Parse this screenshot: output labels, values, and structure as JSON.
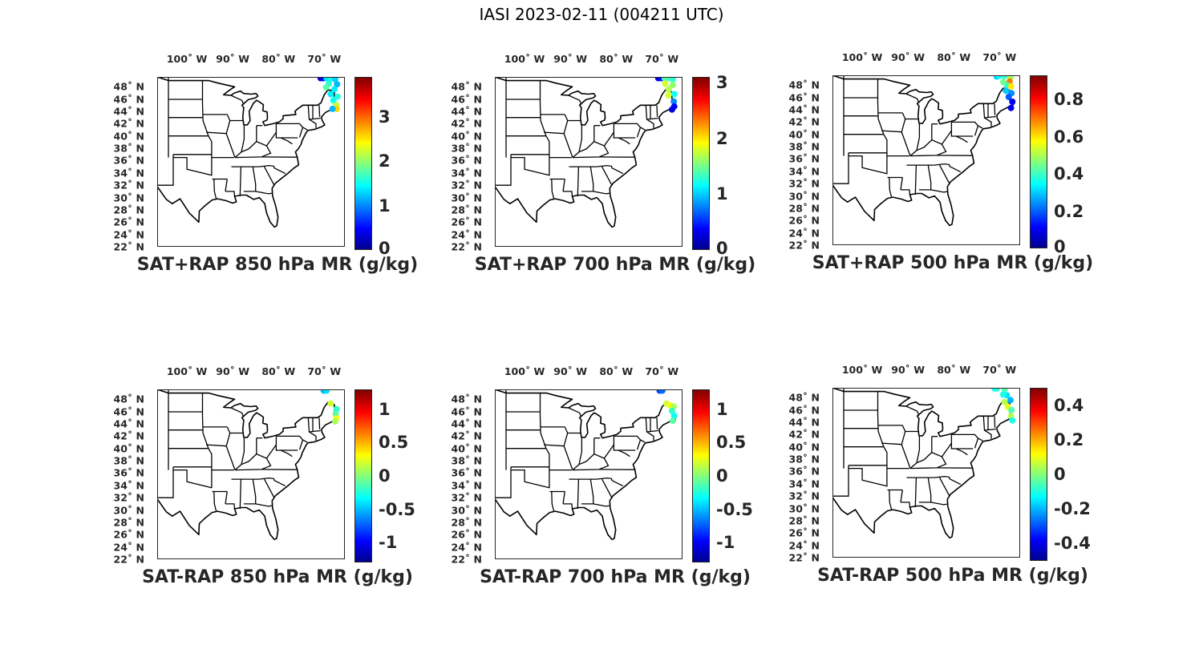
{
  "figure_title": "IASI 2023-02-11 (004211 UTC)",
  "longitude_ticks": [
    "100˚ W",
    "90˚ W",
    "80˚ W",
    "70˚ W"
  ],
  "latitude_ticks": [
    "48˚ N",
    "46˚ N",
    "44˚ N",
    "42˚ N",
    "40˚ N",
    "38˚ N",
    "36˚ N",
    "34˚ N",
    "32˚ N",
    "30˚ N",
    "28˚ N",
    "26˚ N",
    "24˚ N",
    "22˚ N"
  ],
  "colormap": "jet",
  "panels": [
    {
      "title": "SAT+RAP 850 hPa MR (g/kg)",
      "clim": [
        0,
        3.9
      ],
      "ticks": [
        "0",
        "1",
        "2",
        "3"
      ],
      "tick_values": [
        0,
        1,
        2,
        3
      ],
      "obs": [
        [
          -70.8,
          49.4,
          0.3
        ],
        [
          -70.1,
          49.4,
          0.5
        ],
        [
          -69.5,
          49.4,
          1.4
        ],
        [
          -68.5,
          49.4,
          1.5
        ],
        [
          -67.6,
          49.2,
          1.3
        ],
        [
          -67.2,
          48.4,
          1.2
        ],
        [
          -67.8,
          47.6,
          1.4
        ],
        [
          -68.6,
          46.8,
          1.4
        ],
        [
          -67.1,
          46.4,
          1.6
        ],
        [
          -68.0,
          45.8,
          1.5
        ],
        [
          -67.4,
          45.0,
          2.2
        ],
        [
          -67.3,
          44.4,
          2.6
        ],
        [
          -68.2,
          44.4,
          1.2
        ],
        [
          -69.0,
          48.5,
          1.6
        ],
        [
          -69.6,
          47.9,
          1.8
        ]
      ]
    },
    {
      "title": "SAT+RAP 700 hPa MR (g/kg)",
      "clim": [
        0,
        3.1
      ],
      "ticks": [
        "0",
        "1",
        "2",
        "3"
      ],
      "tick_values": [
        0,
        1,
        2,
        3
      ],
      "obs": [
        [
          -70.8,
          49.4,
          0.3
        ],
        [
          -70.1,
          49.4,
          0.4
        ],
        [
          -69.4,
          49.4,
          1.4
        ],
        [
          -68.5,
          49.4,
          1.4
        ],
        [
          -67.6,
          49.2,
          1.3
        ],
        [
          -67.6,
          48.3,
          1.6
        ],
        [
          -68.5,
          47.6,
          1.7
        ],
        [
          -69.3,
          48.5,
          1.8
        ],
        [
          -67.3,
          46.8,
          1.2
        ],
        [
          -67.4,
          45.6,
          0.8
        ],
        [
          -67.3,
          44.8,
          0.4
        ],
        [
          -67.8,
          44.3,
          0.3
        ],
        [
          -68.6,
          46.6,
          1.8
        ]
      ]
    },
    {
      "title": "SAT+RAP 500 hPa MR (g/kg)",
      "clim": [
        0,
        0.93
      ],
      "ticks": [
        "0",
        "0.2",
        "0.4",
        "0.6",
        "0.8"
      ],
      "tick_values": [
        0,
        0.2,
        0.4,
        0.6,
        0.8
      ],
      "obs": [
        [
          -70.6,
          49.4,
          0.3
        ],
        [
          -70.1,
          49.5,
          0.35
        ],
        [
          -68.9,
          49.5,
          0.4
        ],
        [
          -67.6,
          49.2,
          0.5
        ],
        [
          -67.8,
          48.6,
          0.7
        ],
        [
          -68.4,
          48.0,
          0.4
        ],
        [
          -67.5,
          47.8,
          0.6
        ],
        [
          -68.6,
          47.1,
          0.3
        ],
        [
          -67.4,
          46.7,
          0.25
        ],
        [
          -68.0,
          46.1,
          0.2
        ],
        [
          -67.2,
          45.3,
          0.1
        ],
        [
          -67.5,
          44.3,
          0.1
        ],
        [
          -69.2,
          48.5,
          0.45
        ]
      ]
    },
    {
      "title": "SAT-RAP 850 hPa MR (g/kg)",
      "clim": [
        -1.3,
        1.3
      ],
      "ticks": [
        "1",
        "0.5",
        "0",
        "-0.5",
        "-1"
      ],
      "tick_values": [
        1,
        0.5,
        0,
        -0.5,
        -1
      ],
      "obs": [
        [
          -70.1,
          49.4,
          -0.5
        ],
        [
          -69.5,
          49.4,
          -0.4
        ],
        [
          -68.6,
          47.3,
          0.2
        ],
        [
          -67.3,
          46.4,
          -0.2
        ],
        [
          -67.5,
          45.6,
          -0.1
        ],
        [
          -67.4,
          44.9,
          0.3
        ],
        [
          -67.6,
          44.4,
          0.1
        ]
      ]
    },
    {
      "title": "SAT-RAP 700 hPa MR (g/kg)",
      "clim": [
        -1.3,
        1.3
      ],
      "ticks": [
        "1",
        "0.5",
        "0",
        "-0.5",
        "-1"
      ],
      "tick_values": [
        1,
        0.5,
        0,
        -0.5,
        -1
      ],
      "obs": [
        [
          -70.5,
          49.4,
          -0.8
        ],
        [
          -69.9,
          49.4,
          -0.7
        ],
        [
          -69.0,
          47.3,
          0.2
        ],
        [
          -68.2,
          47.0,
          0.3
        ],
        [
          -67.4,
          46.8,
          0.1
        ],
        [
          -67.8,
          46.1,
          -0.2
        ],
        [
          -67.3,
          45.3,
          -0.3
        ],
        [
          -67.6,
          44.5,
          -0.1
        ]
      ]
    },
    {
      "title": "SAT-RAP 500 hPa MR (g/kg)",
      "clim": [
        -0.5,
        0.5
      ],
      "ticks": [
        "0.4",
        "0.2",
        "0",
        "-0.2",
        "-0.4"
      ],
      "tick_values": [
        0.4,
        0.2,
        0,
        -0.2,
        -0.4
      ],
      "obs": [
        [
          -71.1,
          49.5,
          -0.1
        ],
        [
          -70.6,
          49.5,
          -0.1
        ],
        [
          -68.9,
          49.4,
          -0.05
        ],
        [
          -68.4,
          48.4,
          -0.15
        ],
        [
          -67.6,
          47.6,
          -0.2
        ],
        [
          -68.9,
          47.3,
          0.05
        ],
        [
          -68.2,
          46.5,
          0.1
        ],
        [
          -67.4,
          46.0,
          -0.05
        ],
        [
          -67.5,
          45.0,
          0.05
        ],
        [
          -67.2,
          44.3,
          -0.1
        ],
        [
          -69.2,
          48.5,
          -0.1
        ]
      ]
    }
  ]
}
